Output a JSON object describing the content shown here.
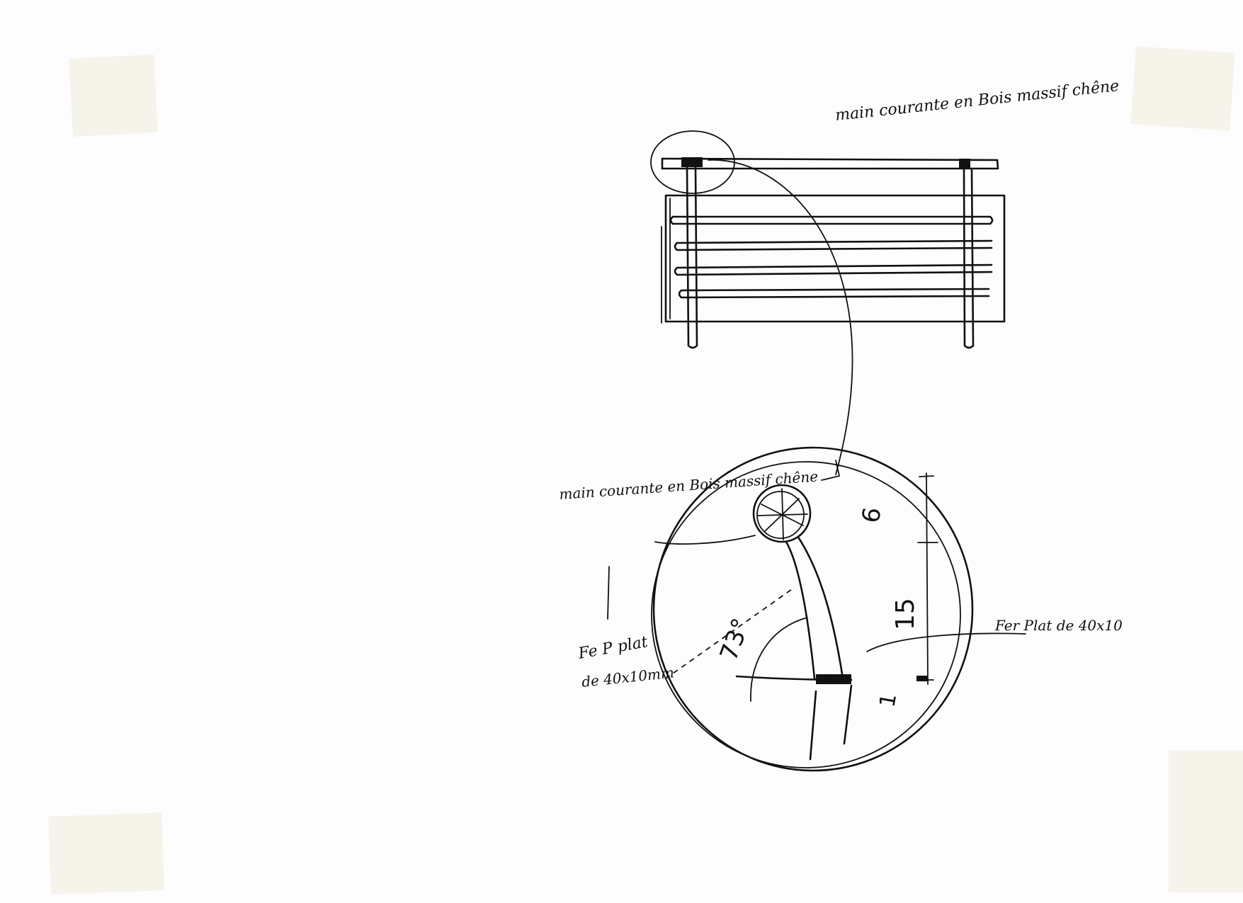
{
  "sheet": {
    "labels": {
      "handrail_top": "main courante en Bois massif chêne",
      "handrail_detail": "main courante en Bois massif chêne",
      "flat_iron_left": "Fe P plat",
      "flat_iron_left_dim": "de 40x10mm",
      "flat_iron_right": "Fer Plat de 40x10"
    },
    "dimensions": {
      "angle": "73°",
      "dim_top": "6",
      "dim_mid": "15",
      "dim_bottom": "1"
    }
  }
}
